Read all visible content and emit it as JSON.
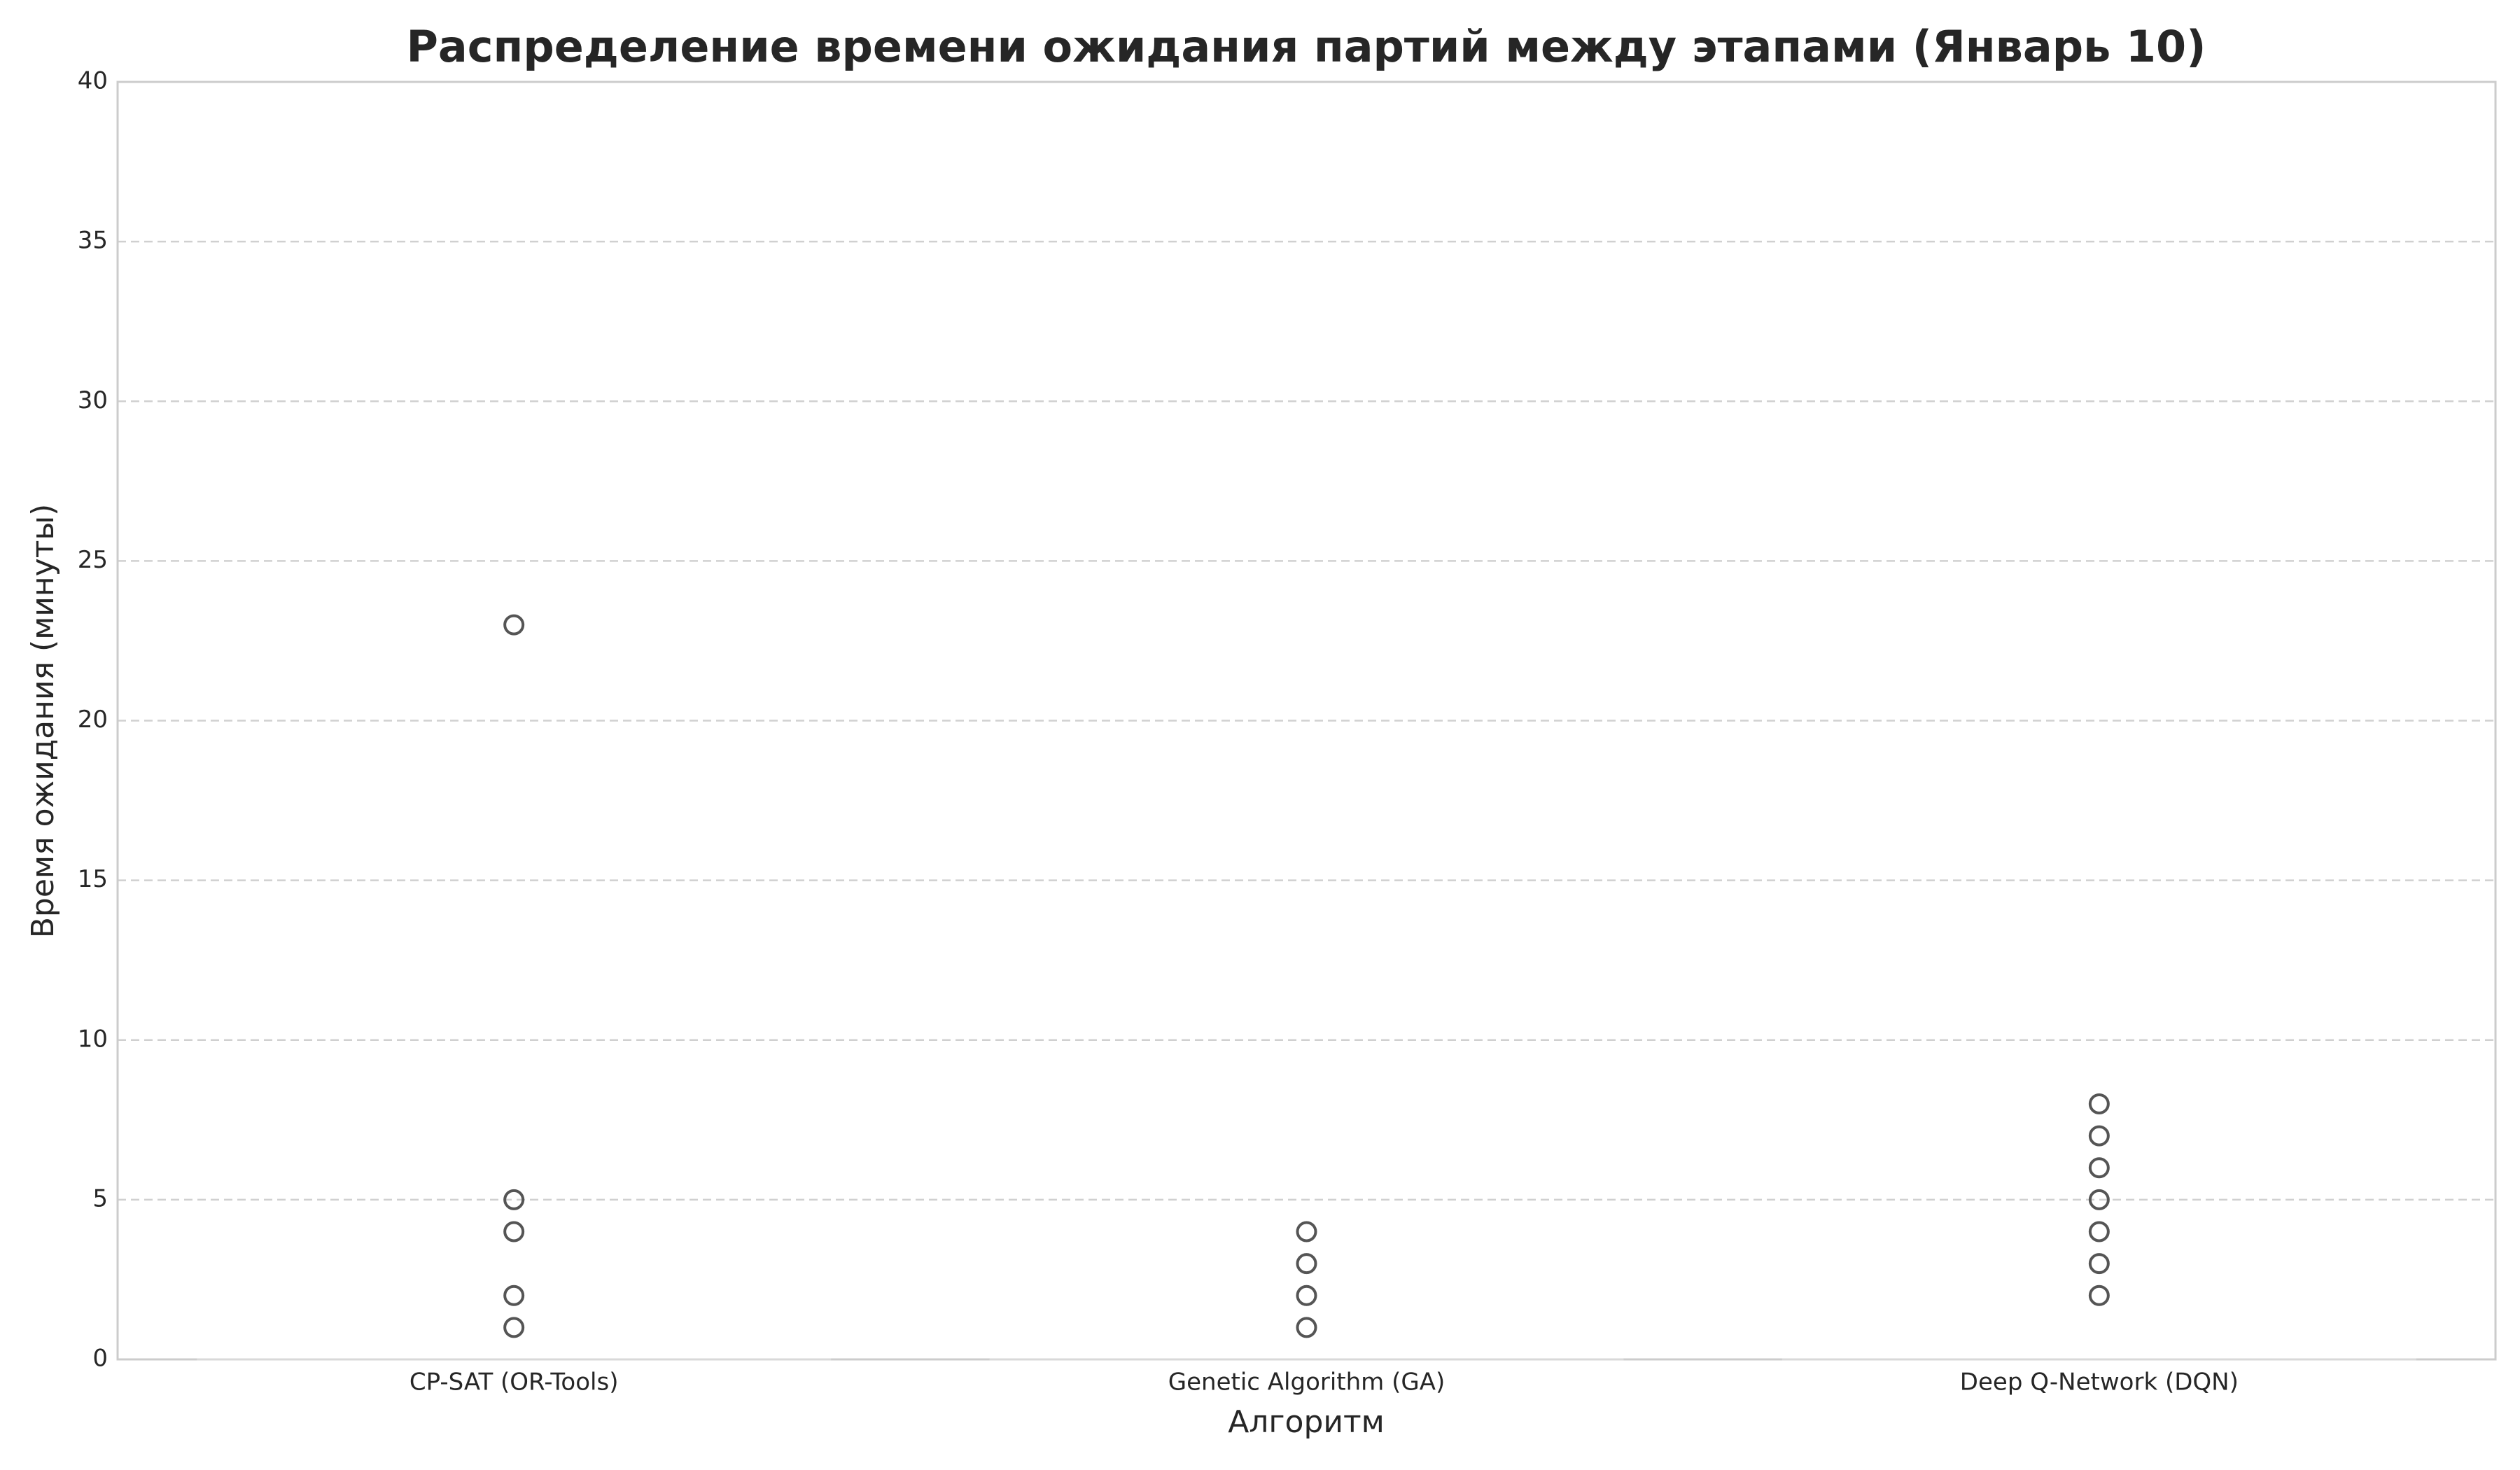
{
  "chart_data": {
    "type": "box",
    "title": "Распределение времени ожидания партий между этапами (Январь 10)",
    "x_label": "Алгоритм",
    "y_label": "Время ожидания (минуты)",
    "categories": [
      "CP-SAT (OR-Tools)",
      "Genetic Algorithm (GA)",
      "Deep Q-Network (DQN)"
    ],
    "boxes": [
      {
        "min": 0,
        "q1": 0,
        "median": 0,
        "q3": 0,
        "max": 0,
        "fliers": [
          23,
          5,
          4,
          2,
          1
        ]
      },
      {
        "min": 0,
        "q1": 0,
        "median": 0,
        "q3": 0,
        "max": 0,
        "fliers": [
          4,
          3,
          2,
          1
        ]
      },
      {
        "min": 0,
        "q1": 0,
        "median": 0,
        "q3": 0,
        "max": 0,
        "fliers": [
          8,
          7,
          6,
          5,
          4,
          3,
          2
        ]
      }
    ],
    "color": "#d9d9d9",
    "flier_color": "#555555",
    "ylim": [
      0,
      40
    ],
    "yticks": [
      0,
      5,
      10,
      15,
      20,
      25,
      30,
      35,
      40
    ],
    "grid": true
  }
}
